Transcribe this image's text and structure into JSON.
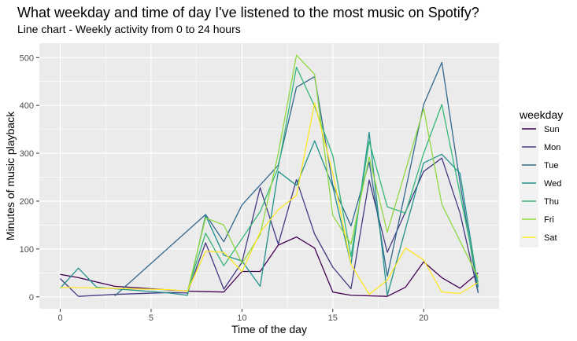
{
  "chart_data": {
    "type": "line",
    "title": "What weekday and time of day I've listened to the most music on Spotify?",
    "subtitle": "Line chart - Weekly activity from 0 to 24 hours",
    "xlabel": "Time of the day",
    "ylabel": "Minutes of music playback",
    "xlim": [
      -1.15,
      24.15
    ],
    "ylim": [
      -25,
      530
    ],
    "x_ticks": [
      0,
      5,
      10,
      15,
      20
    ],
    "y_ticks": [
      0,
      100,
      200,
      300,
      400,
      500
    ],
    "grid": true,
    "legend": {
      "title": "weekday",
      "position": "right"
    },
    "series": [
      {
        "name": "Sun",
        "color": "#440154",
        "points": [
          [
            0,
            47
          ],
          [
            1,
            40
          ],
          [
            3,
            22
          ],
          [
            7,
            12
          ],
          [
            9,
            10
          ],
          [
            10,
            53
          ],
          [
            11,
            53
          ],
          [
            12,
            108
          ],
          [
            13,
            125
          ],
          [
            14,
            102
          ],
          [
            15,
            10
          ],
          [
            16,
            3
          ],
          [
            18,
            1
          ],
          [
            19,
            20
          ],
          [
            20,
            73
          ],
          [
            21,
            40
          ],
          [
            22,
            18
          ],
          [
            23,
            50
          ]
        ]
      },
      {
        "name": "Mon",
        "color": "#443983",
        "points": [
          [
            0,
            38
          ],
          [
            1,
            1
          ],
          [
            3,
            5
          ],
          [
            6,
            9
          ],
          [
            7,
            8
          ],
          [
            8,
            113
          ],
          [
            9,
            16
          ],
          [
            10,
            72
          ],
          [
            11,
            228
          ],
          [
            12,
            110
          ],
          [
            13,
            245
          ],
          [
            14,
            131
          ],
          [
            15,
            62
          ],
          [
            16,
            17
          ],
          [
            17,
            244
          ],
          [
            18,
            93
          ],
          [
            20,
            262
          ],
          [
            21,
            290
          ],
          [
            22,
            175
          ],
          [
            23,
            8
          ]
        ]
      },
      {
        "name": "Tue",
        "color": "#31688e",
        "points": [
          [
            3,
            2
          ],
          [
            8,
            172
          ],
          [
            9,
            115
          ],
          [
            10,
            192
          ],
          [
            12,
            275
          ],
          [
            13,
            438
          ],
          [
            14,
            460
          ],
          [
            15,
            233
          ],
          [
            16,
            148
          ],
          [
            17,
            282
          ],
          [
            18,
            43
          ],
          [
            20,
            402
          ],
          [
            21,
            490
          ],
          [
            22,
            238
          ],
          [
            23,
            8
          ]
        ]
      },
      {
        "name": "Wed",
        "color": "#21918c",
        "points": [
          [
            0,
            18
          ],
          [
            1,
            60
          ],
          [
            2,
            20
          ],
          [
            6,
            8
          ],
          [
            7,
            3
          ],
          [
            8,
            170
          ],
          [
            9,
            87
          ],
          [
            10,
            75
          ],
          [
            11,
            22
          ],
          [
            12,
            262
          ],
          [
            13,
            233
          ],
          [
            14,
            326
          ],
          [
            15,
            230
          ],
          [
            16,
            68
          ],
          [
            17,
            344
          ],
          [
            18,
            3
          ],
          [
            20,
            280
          ],
          [
            21,
            298
          ],
          [
            22,
            258
          ],
          [
            23,
            20
          ]
        ]
      },
      {
        "name": "Thu",
        "color": "#35b779",
        "points": [
          [
            7,
            12
          ],
          [
            8,
            133
          ],
          [
            9,
            65
          ],
          [
            11,
            178
          ],
          [
            12,
            270
          ],
          [
            13,
            480
          ],
          [
            14,
            398
          ],
          [
            15,
            295
          ],
          [
            16,
            84
          ],
          [
            17,
            325
          ],
          [
            18,
            188
          ],
          [
            19,
            175
          ],
          [
            20,
            300
          ],
          [
            21,
            402
          ],
          [
            23,
            28
          ]
        ]
      },
      {
        "name": "Fri",
        "color": "#90d743",
        "points": [
          [
            7,
            10
          ],
          [
            8,
            165
          ],
          [
            9,
            150
          ],
          [
            10,
            70
          ],
          [
            11,
            130
          ],
          [
            12,
            300
          ],
          [
            13,
            505
          ],
          [
            14,
            465
          ],
          [
            15,
            170
          ],
          [
            16,
            110
          ],
          [
            17,
            292
          ],
          [
            18,
            135
          ],
          [
            20,
            393
          ],
          [
            21,
            193
          ],
          [
            23,
            40
          ]
        ]
      },
      {
        "name": "Sat",
        "color": "#fde725",
        "points": [
          [
            0,
            20
          ],
          [
            6,
            15
          ],
          [
            7,
            12
          ],
          [
            8,
            95
          ],
          [
            9,
            93
          ],
          [
            10,
            53
          ],
          [
            11,
            135
          ],
          [
            12,
            182
          ],
          [
            13,
            212
          ],
          [
            14,
            405
          ],
          [
            15,
            258
          ],
          [
            16,
            68
          ],
          [
            17,
            5
          ],
          [
            18,
            35
          ],
          [
            19,
            102
          ],
          [
            20,
            77
          ],
          [
            21,
            10
          ],
          [
            22,
            7
          ],
          [
            23,
            30
          ]
        ]
      }
    ]
  }
}
